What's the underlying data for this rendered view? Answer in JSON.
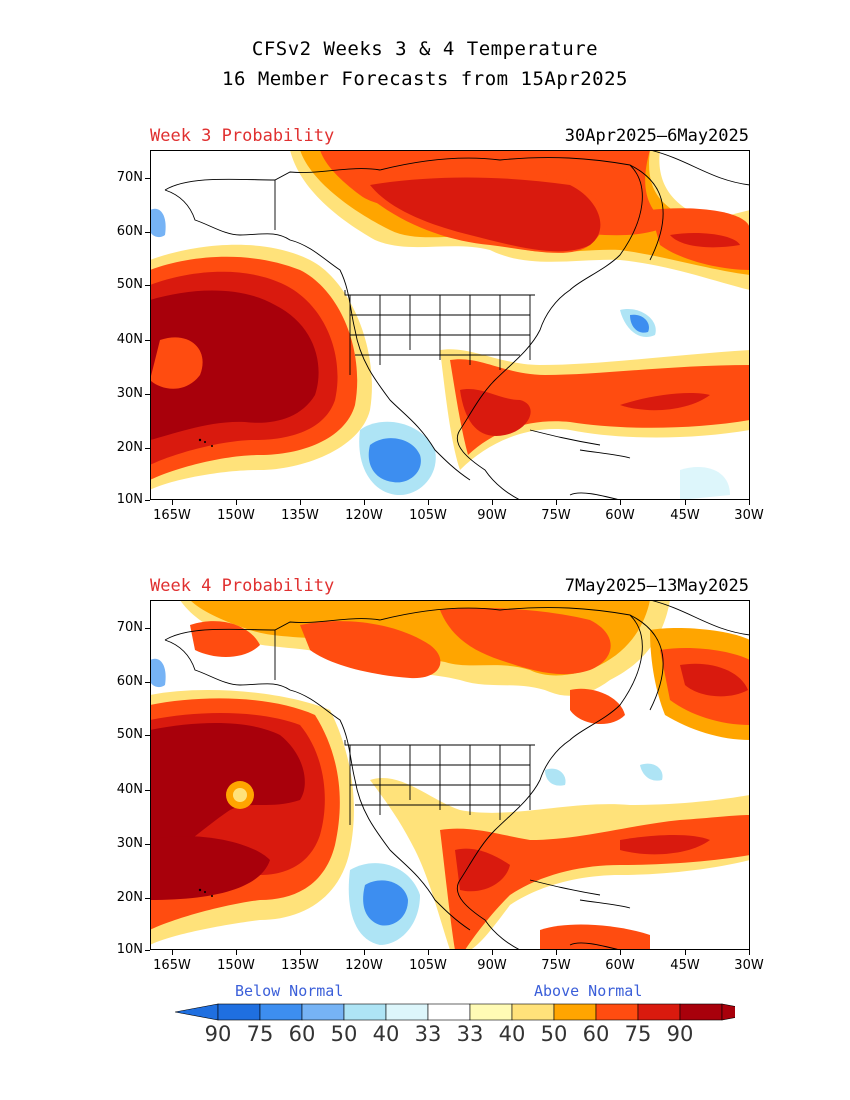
{
  "title": {
    "line1": "CFSv2 Weeks 3 & 4 Temperature",
    "line2": "16 Member Forecasts from 15Apr2025"
  },
  "panels": [
    {
      "label": "Week 3 Probability",
      "dates": "30Apr2025—6May2025"
    },
    {
      "label": "Week 4 Probability",
      "dates": "7May2025—13May2025"
    }
  ],
  "axes": {
    "lat_labels": [
      "70N",
      "60N",
      "50N",
      "40N",
      "30N",
      "20N",
      "10N"
    ],
    "lon_labels": [
      "165W",
      "150W",
      "135W",
      "120W",
      "105W",
      "90W",
      "75W",
      "60W",
      "45W",
      "30W"
    ]
  },
  "legend": {
    "below_label": "Below Normal",
    "above_label": "Above Normal",
    "below_colors": [
      "#1f6fe0",
      "#3d8ef0",
      "#76b3f5",
      "#aee4f5",
      "#ddf6fb"
    ],
    "above_colors": [
      "#fffbb5",
      "#ffe27a",
      "#ffa500",
      "#ff4c10",
      "#d91a0e",
      "#a8000b"
    ],
    "numbers": [
      "90",
      "75",
      "60",
      "50",
      "40",
      "33",
      "33",
      "40",
      "50",
      "60",
      "75",
      "90"
    ]
  },
  "colors": {
    "deep_red": "#a8000b",
    "red": "#d91a0e",
    "orange_red": "#ff4c10",
    "orange": "#ffa500",
    "light_orange": "#ffe27a",
    "pale_yellow": "#fffbb5",
    "pale_cyan": "#ddf6fb",
    "light_blue": "#aee4f5",
    "blue": "#3d8ef0"
  }
}
